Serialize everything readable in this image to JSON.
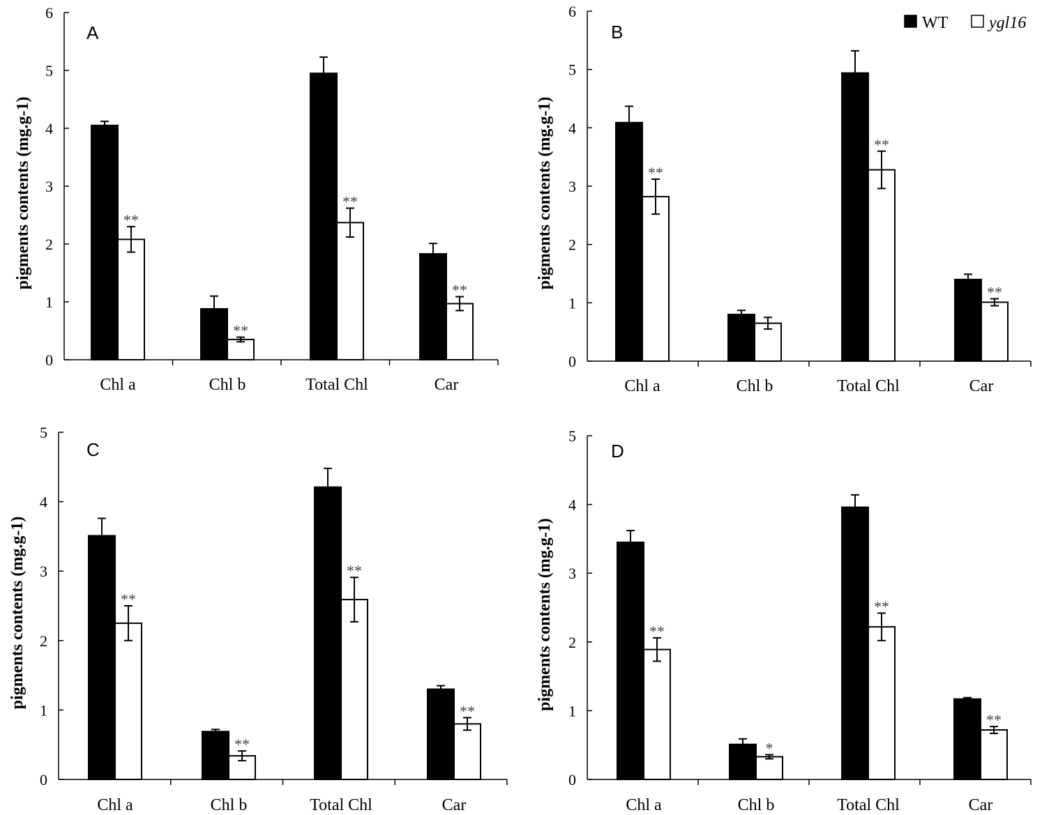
{
  "legend": {
    "series_1": "WT",
    "series_2": "ygl16"
  },
  "chart_data": [
    {
      "type": "bar",
      "panel": "A",
      "categories": [
        "Chl a",
        "Chl b",
        "Total Chl",
        "Car"
      ],
      "ylabel": "pigments contents (mg.g-1)",
      "ylim": [
        0,
        6
      ],
      "yticks": [
        0,
        1,
        2,
        3,
        4,
        5,
        6
      ],
      "series": [
        {
          "name": "WT",
          "values": [
            4.05,
            0.88,
            4.95,
            1.83
          ],
          "errors": [
            0.07,
            0.22,
            0.28,
            0.18
          ],
          "significance": [
            "",
            "",
            "",
            ""
          ]
        },
        {
          "name": "ygl16",
          "values": [
            2.08,
            0.35,
            2.37,
            0.97
          ],
          "errors": [
            0.22,
            0.04,
            0.25,
            0.12
          ],
          "significance": [
            "**",
            "**",
            "**",
            "**"
          ]
        }
      ]
    },
    {
      "type": "bar",
      "panel": "B",
      "categories": [
        "Chl a",
        "Chl b",
        "Total Chl",
        "Car"
      ],
      "ylabel": "pigments contents (mg.g-1)",
      "ylim": [
        0,
        6
      ],
      "yticks": [
        0,
        1,
        2,
        3,
        4,
        5,
        6
      ],
      "series": [
        {
          "name": "WT",
          "values": [
            4.09,
            0.8,
            4.94,
            1.4
          ],
          "errors": [
            0.28,
            0.07,
            0.38,
            0.09
          ],
          "significance": [
            "",
            "",
            "",
            ""
          ]
        },
        {
          "name": "ygl16",
          "values": [
            2.82,
            0.65,
            3.28,
            1.01
          ],
          "errors": [
            0.3,
            0.1,
            0.32,
            0.06
          ],
          "significance": [
            "**",
            "",
            "**",
            "**"
          ]
        }
      ]
    },
    {
      "type": "bar",
      "panel": "C",
      "categories": [
        "Chl a",
        "Chl b",
        "Total Chl",
        "Car"
      ],
      "ylabel": "pigments contents (mg.g-1)",
      "ylim": [
        0,
        5
      ],
      "yticks": [
        0,
        1,
        2,
        3,
        4,
        5
      ],
      "series": [
        {
          "name": "WT",
          "values": [
            3.51,
            0.69,
            4.21,
            1.3
          ],
          "errors": [
            0.25,
            0.03,
            0.27,
            0.05
          ],
          "significance": [
            "",
            "",
            "",
            ""
          ]
        },
        {
          "name": "ygl16",
          "values": [
            2.25,
            0.34,
            2.59,
            0.8
          ],
          "errors": [
            0.25,
            0.07,
            0.32,
            0.09
          ],
          "significance": [
            "**",
            "**",
            "**",
            "**"
          ]
        }
      ]
    },
    {
      "type": "bar",
      "panel": "D",
      "categories": [
        "Chl a",
        "Chl b",
        "Total Chl",
        "Car"
      ],
      "ylabel": "pigments contents (mg.g-1)",
      "ylim": [
        0,
        5
      ],
      "yticks": [
        0,
        1,
        2,
        3,
        4,
        5
      ],
      "series": [
        {
          "name": "WT",
          "values": [
            3.45,
            0.51,
            3.96,
            1.17
          ],
          "errors": [
            0.17,
            0.08,
            0.18,
            0.02
          ],
          "significance": [
            "",
            "",
            "",
            ""
          ]
        },
        {
          "name": "ygl16",
          "values": [
            1.89,
            0.33,
            2.22,
            0.72
          ],
          "errors": [
            0.17,
            0.03,
            0.2,
            0.05
          ],
          "significance": [
            "**",
            "*",
            "**",
            "**"
          ]
        }
      ]
    }
  ]
}
